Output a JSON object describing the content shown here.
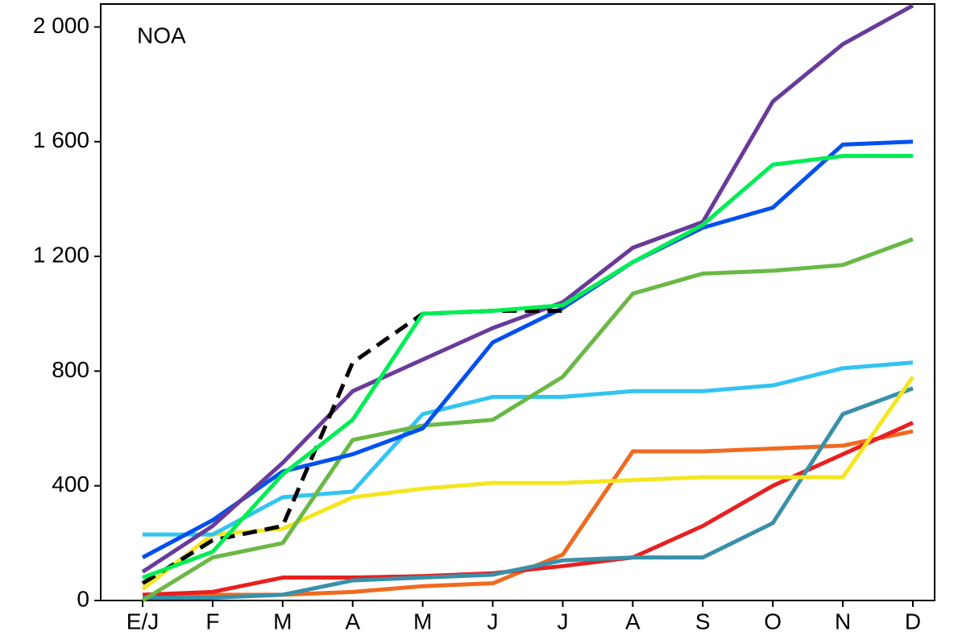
{
  "chart_data": {
    "type": "line",
    "annotation": "NOA",
    "categories": [
      "E/J",
      "F",
      "M",
      "A",
      "M",
      "J",
      "J",
      "A",
      "S",
      "O",
      "N",
      "D"
    ],
    "ylim": [
      0,
      2080
    ],
    "yticks": [
      0,
      400,
      800,
      {
        "value": 1200,
        "label": "1 200"
      },
      {
        "value": 1600,
        "label": "1 600"
      },
      {
        "value": 2000,
        "label": "2 000"
      }
    ],
    "series": [
      {
        "color": "#f06a20",
        "values": [
          10,
          20,
          20,
          30,
          50,
          60,
          160,
          520,
          520,
          530,
          540,
          590
        ]
      },
      {
        "color": "#e82020",
        "values": [
          20,
          30,
          80,
          80,
          85,
          95,
          120,
          150,
          260,
          400,
          510,
          620
        ]
      },
      {
        "color": "#3a90a8",
        "values": [
          10,
          10,
          20,
          70,
          80,
          90,
          140,
          150,
          150,
          270,
          650,
          740
        ]
      },
      {
        "color": "#f5e51e",
        "values": [
          40,
          230,
          250,
          360,
          390,
          410,
          410,
          420,
          430,
          430,
          430,
          780
        ]
      },
      {
        "color": "#33c4f0",
        "values": [
          230,
          230,
          360,
          380,
          650,
          710,
          710,
          730,
          730,
          750,
          810,
          830
        ]
      },
      {
        "color": "#6ab845",
        "values": [
          0,
          150,
          200,
          560,
          610,
          630,
          780,
          1070,
          1140,
          1150,
          1170,
          1260
        ]
      },
      {
        "color": "#0050f0",
        "values": [
          150,
          280,
          450,
          510,
          600,
          900,
          1020,
          1180,
          1300,
          1370,
          1590,
          1600
        ]
      },
      {
        "color": "#6a3a9a",
        "values": [
          100,
          260,
          480,
          730,
          840,
          950,
          1040,
          1230,
          1320,
          1740,
          1940,
          2075
        ]
      },
      {
        "color": "#000000",
        "dashed": true,
        "values": [
          60,
          210,
          260,
          830,
          1000,
          1010,
          1010,
          null,
          null,
          null,
          null,
          null
        ]
      },
      {
        "color": "#00ee55",
        "values": [
          80,
          170,
          440,
          630,
          1000,
          1010,
          1030,
          1180,
          1310,
          1520,
          1550,
          1550
        ]
      }
    ]
  }
}
